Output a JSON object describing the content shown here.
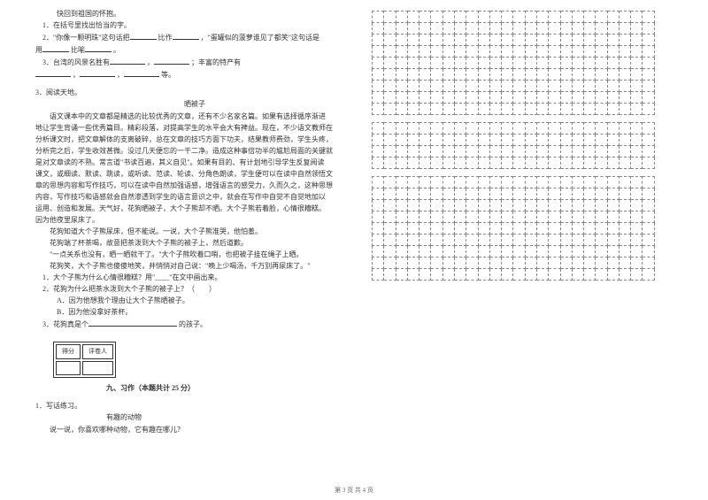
{
  "left": {
    "line1": "快回到祖国的怀抱。",
    "q1": "1．在括号里找出恰当的字。",
    "q2a": "2．\"你像一颗明珠\"这句话把",
    "q2b": "比作",
    "q2c": "，\"蛋罐似的菠萝谁见了都笑\"这句话是",
    "q2d": "用",
    "q2e": "比喻",
    "q2f": "。",
    "q3a": "3．台湾的风景名胜有",
    "q3b": "，",
    "q3c": "；丰富的特产有",
    "q3d": "，",
    "q3e": "，",
    "q3f": "等。",
    "section3": "3．阅读天地。",
    "title": "晒被子",
    "passage": [
      "语文课本中的文章都是精选的比较优秀的文章，还有不少名家名篇。如果有选择循序渐进",
      "地让学生背诵一些优秀篇目。精彩段落，对提高学生的水平会大有裨益。现在，不少语文教师在",
      "分析课文时，把文章解体的支离破碎，总在文章的技巧方面下功夫，结果教师费劲，学生头疼，",
      "分析完之后，学生收效甚微。没过几天便忘的一干二净。造成这种事倍功半的尴尬局面的关键就",
      "是对文章读的不熟。常言道\"书读百遍，其义自见\"。如果有目的、有计划地引导学生反复阅读",
      "课文，或细读、默读、跳读，或听读、范读、轮读、分角色朗读，学生便可以在读中自然领悟文",
      "章的思想内容和写作技巧，可以在读中自然加强语感，增强语言的感受力，久而久之，这种思想",
      "内容，写作技巧和语感就会自然渗透到学生的语言意识之中，就会在写作中自觉不自觉地加以",
      "运用、创造和发展。天气好，花狗晒被子，大个子熊却不晒。大个子熊若着脸，心情很糟糕。",
      "因为他夜里尿床了。",
      "花狗知道大个子熊尿床，但不能说。一说，大个子熊准哭，他怕羞。",
      "花狗端了杯茶喝，故意把茶泼到大个子熊的被子上，然后道歉。",
      "\"一点关系也没有，晒一晒就干了。\"大个子熊吹着口哨，也把被子挂在绳子上晒。",
      "花狗笑，大个子熊也傻傻地笑，并悄悄对自己说：\"晚上少喝汤，千万别再尿床了。\""
    ],
    "q_1": "1．大个子熊为什么心情很糟糕？用\"____\"在文中画出来。",
    "q_2": "2．花狗为什么把茶水泼到大个子熊的被子上？（　　）",
    "q_2a": "A．因为他想我个理由让大个子熊晒被子。",
    "q_2b": "B．因为他没拿好茶杯。",
    "q_3a": "3．花狗真是个",
    "q_3b": "的孩子。",
    "scoreA": "得分",
    "scoreB": "评卷人",
    "section9": "九、习作（本题共计 25 分）",
    "q_writing_1": "1．写话练习。",
    "writing_title": "有趣的动物",
    "writing_prompt": "说一说，你喜欢哪种动物，它有趣在哪儿？"
  },
  "footer": "第 3 页 共 4 页",
  "grid": {
    "cols": 24,
    "block1_rows": 9,
    "block2_rows": 4,
    "block3_rows": 9
  },
  "style": {
    "bg": "#ffffff",
    "text_color": "#333333",
    "grid_border": "#888888",
    "font_size_body": 8,
    "font_size_footer": 7
  }
}
